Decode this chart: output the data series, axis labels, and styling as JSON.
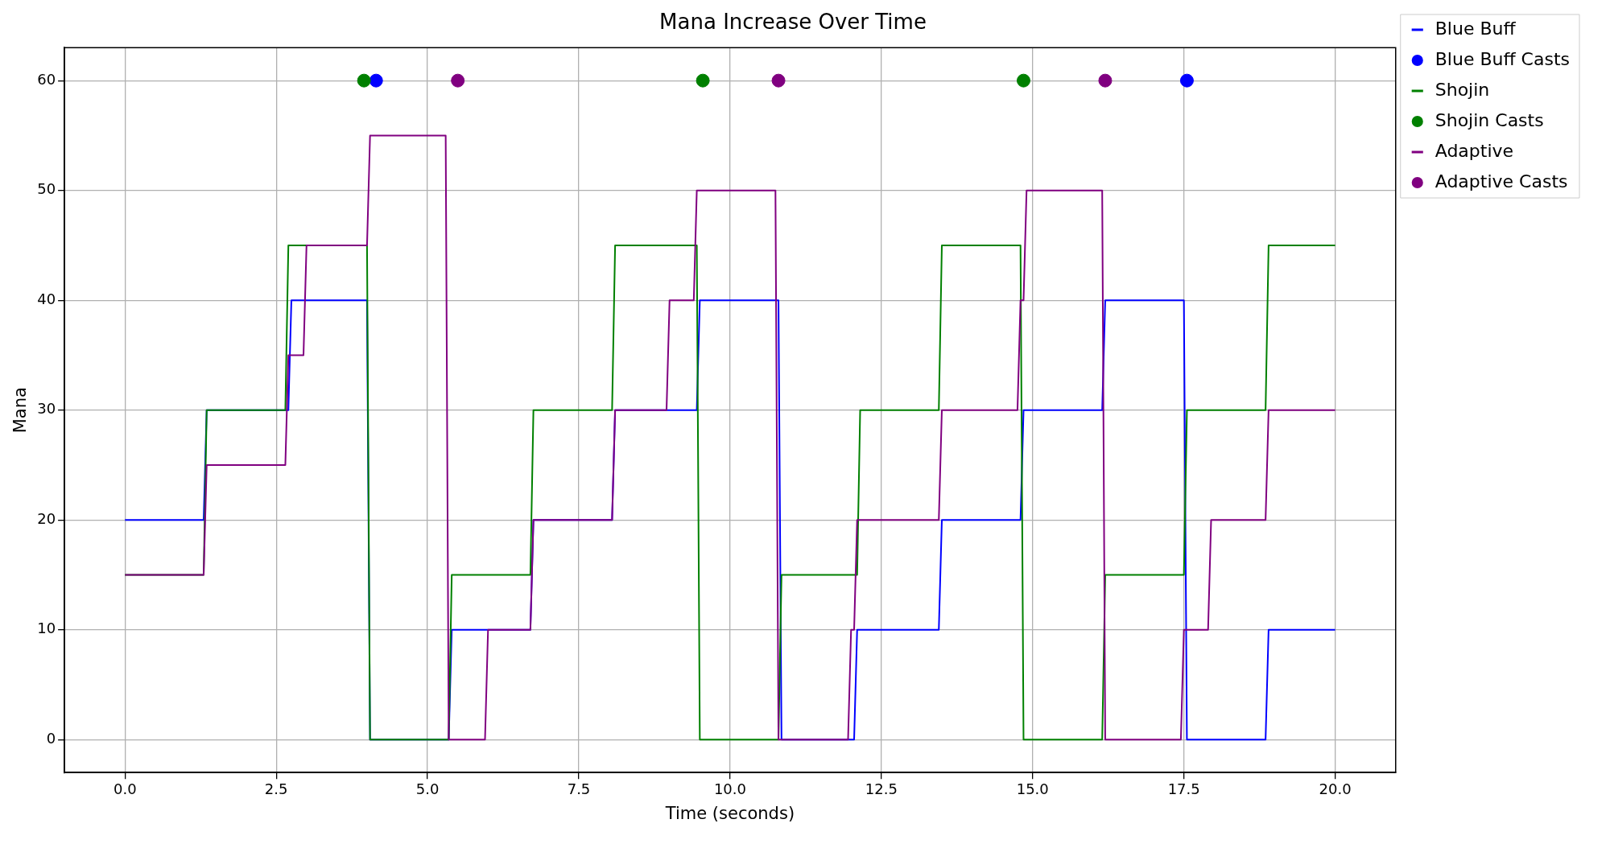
{
  "chart_data": {
    "type": "line",
    "title": "Mana Increase Over Time",
    "xlabel": "Time (seconds)",
    "ylabel": "Mana",
    "xlim": [
      -1,
      21
    ],
    "xticks": [
      {
        "value": 0,
        "label": "0.0"
      },
      {
        "value": 2.5,
        "label": "2.5"
      },
      {
        "value": 5,
        "label": "5.0"
      },
      {
        "value": 7.5,
        "label": "7.5"
      },
      {
        "value": 10,
        "label": "10.0"
      },
      {
        "value": 12.5,
        "label": "12.5"
      },
      {
        "value": 15,
        "label": "15.0"
      },
      {
        "value": 17.5,
        "label": "17.5"
      },
      {
        "value": 20,
        "label": "20.0"
      }
    ],
    "ylim": [
      -3,
      63
    ],
    "yticks": [
      0,
      10,
      20,
      30,
      40,
      50,
      60
    ],
    "grid": true,
    "legend": "top right",
    "series": [
      {
        "name": "Blue Buff",
        "color": "#0000ff",
        "x": [
          0,
          1.3,
          1.35,
          2.7,
          2.75,
          4.0,
          4.05,
          5.35,
          5.4,
          6.7,
          6.75,
          8.05,
          8.1,
          9.45,
          9.5,
          10.8,
          10.85,
          12.05,
          12.1,
          13.45,
          13.5,
          14.8,
          14.85,
          16.15,
          16.2,
          17.5,
          17.55,
          18.85,
          18.9,
          20
        ],
        "values": [
          20,
          20,
          30,
          30,
          40,
          40,
          0,
          0,
          10,
          10,
          20,
          20,
          30,
          30,
          40,
          40,
          0,
          0,
          10,
          10,
          20,
          20,
          30,
          30,
          40,
          40,
          0,
          0,
          10,
          10
        ]
      },
      {
        "name": "Blue Buff Casts",
        "type": "scatter",
        "color": "#0000ff",
        "x": [
          4.15,
          17.55
        ],
        "values": [
          60,
          60
        ]
      },
      {
        "name": "Shojin",
        "color": "#008000",
        "x": [
          0,
          1.3,
          1.35,
          2.65,
          2.7,
          4.0,
          4.05,
          5.35,
          5.4,
          6.7,
          6.75,
          8.05,
          8.1,
          9.45,
          9.5,
          10.8,
          10.85,
          12.1,
          12.15,
          13.45,
          13.5,
          14.8,
          14.85,
          16.15,
          16.2,
          17.5,
          17.55,
          18.85,
          18.9,
          20
        ],
        "values": [
          15,
          15,
          30,
          30,
          45,
          45,
          0,
          0,
          15,
          15,
          30,
          30,
          45,
          45,
          0,
          0,
          15,
          15,
          30,
          30,
          45,
          45,
          0,
          0,
          15,
          15,
          30,
          30,
          45,
          45
        ]
      },
      {
        "name": "Shojin Casts",
        "type": "scatter",
        "color": "#008000",
        "x": [
          3.95,
          9.55,
          14.85
        ],
        "values": [
          60,
          60,
          60
        ]
      },
      {
        "name": "Adaptive",
        "color": "#800080",
        "x": [
          0,
          1.3,
          1.35,
          2.65,
          2.7,
          2.95,
          3.0,
          4.0,
          4.05,
          5.3,
          5.35,
          5.95,
          6.0,
          6.7,
          6.75,
          8.05,
          8.1,
          8.95,
          9.0,
          9.4,
          9.45,
          10.75,
          10.8,
          11.95,
          12.0,
          12.05,
          12.1,
          13.45,
          13.5,
          14.75,
          14.8,
          14.85,
          14.9,
          16.15,
          16.2,
          17.45,
          17.5,
          17.9,
          17.95,
          18.85,
          18.9,
          20
        ],
        "values": [
          15,
          15,
          25,
          25,
          35,
          35,
          45,
          45,
          55,
          55,
          0,
          0,
          10,
          10,
          20,
          20,
          30,
          30,
          40,
          40,
          50,
          50,
          0,
          0,
          10,
          10,
          20,
          20,
          30,
          30,
          40,
          40,
          50,
          50,
          0,
          0,
          10,
          10,
          20,
          20,
          30,
          30
        ]
      },
      {
        "name": "Adaptive Casts",
        "type": "scatter",
        "color": "#800080",
        "x": [
          5.5,
          10.8,
          16.2
        ],
        "values": [
          60,
          60,
          60
        ]
      }
    ]
  }
}
